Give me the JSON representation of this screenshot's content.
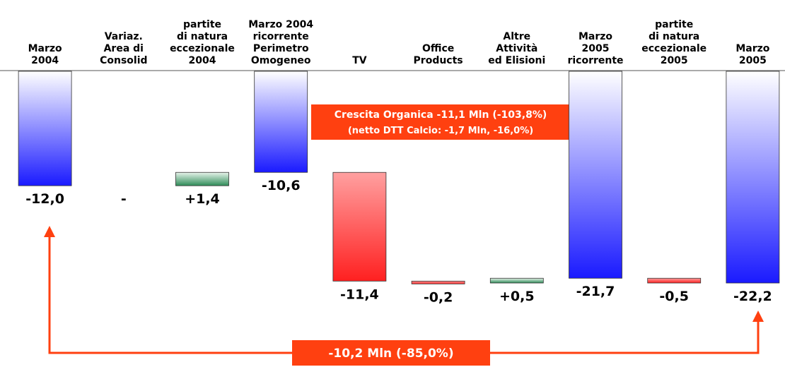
{
  "chart_data": {
    "type": "waterfall",
    "categories": [
      "Marzo\n2004",
      "Variaz.\nArea di\nConsolid",
      "partite\ndi natura\neccezionale\n2004",
      "Marzo 2004\nricorrente\nPerimetro\nOmogeneo",
      "TV",
      "Office\nProducts",
      "Altre\nAttività\ned Elisioni",
      "Marzo\n2005\nricorrente",
      "partite\ndi natura\neccezionale\n2005",
      "Marzo\n2005"
    ],
    "values": [
      -12.0,
      0,
      1.4,
      -10.6,
      -11.4,
      -0.2,
      0.5,
      -21.7,
      -0.5,
      -22.2
    ],
    "value_labels": [
      "-12,0",
      "-",
      "+1,4",
      "-10,6",
      "-11,4",
      "-0,2",
      "+0,5",
      "-21,7",
      "-0,5",
      "-22,2"
    ],
    "measures": [
      "total",
      "relative",
      "relative",
      "total",
      "relative",
      "relative",
      "relative",
      "total",
      "relative",
      "total"
    ],
    "colors": {
      "total": "#1a1aff",
      "increase": "#2e8b57",
      "decrease": "#ff2020"
    },
    "annotations": [
      "Crescita Organica -11,1 Mln (-103,8%)",
      "(netto DTT Calcio: -1,7 Mln,  -16,0%)",
      "-10,2 Mln (-85,0%)"
    ]
  }
}
